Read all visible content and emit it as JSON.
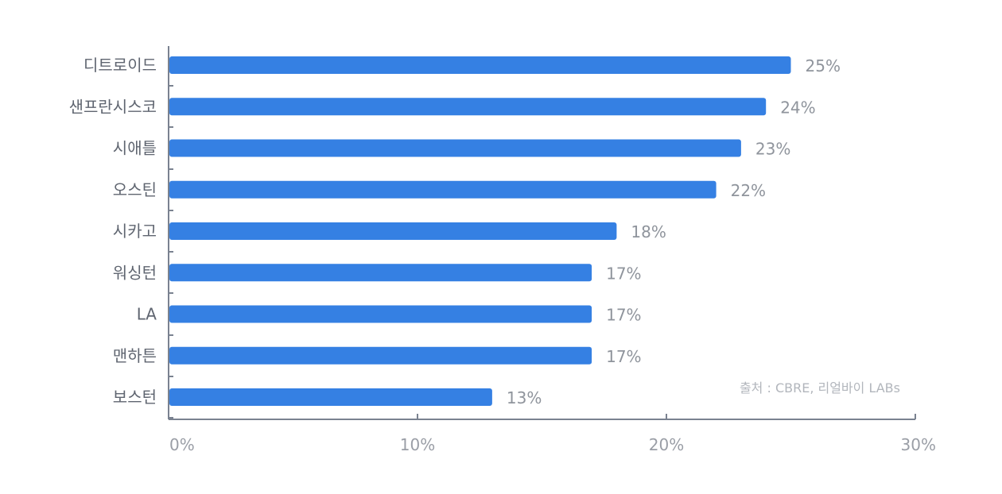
{
  "chart_data": {
    "type": "bar",
    "orientation": "horizontal",
    "categories": [
      "디트로이드",
      "샌프란시스코",
      "시애틀",
      "오스틴",
      "시카고",
      "워싱턴",
      "LA",
      "맨하튼",
      "보스턴"
    ],
    "values": [
      25,
      24,
      23,
      22,
      18,
      17,
      17,
      17,
      13
    ],
    "value_labels": [
      "25%",
      "24%",
      "23%",
      "22%",
      "18%",
      "17%",
      "17%",
      "17%",
      "13%"
    ],
    "xlim": [
      0,
      30
    ],
    "xticks": [
      0,
      10,
      20,
      30
    ],
    "xtick_labels": [
      "0%",
      "10%",
      "20%",
      "30%"
    ],
    "title": "",
    "xlabel": "",
    "ylabel": "",
    "grid": false,
    "legend": false,
    "bar_color": "#3580e3",
    "axis_color": "#7a8290",
    "source": "출처 : CBRE, 리얼바이 LABs"
  }
}
